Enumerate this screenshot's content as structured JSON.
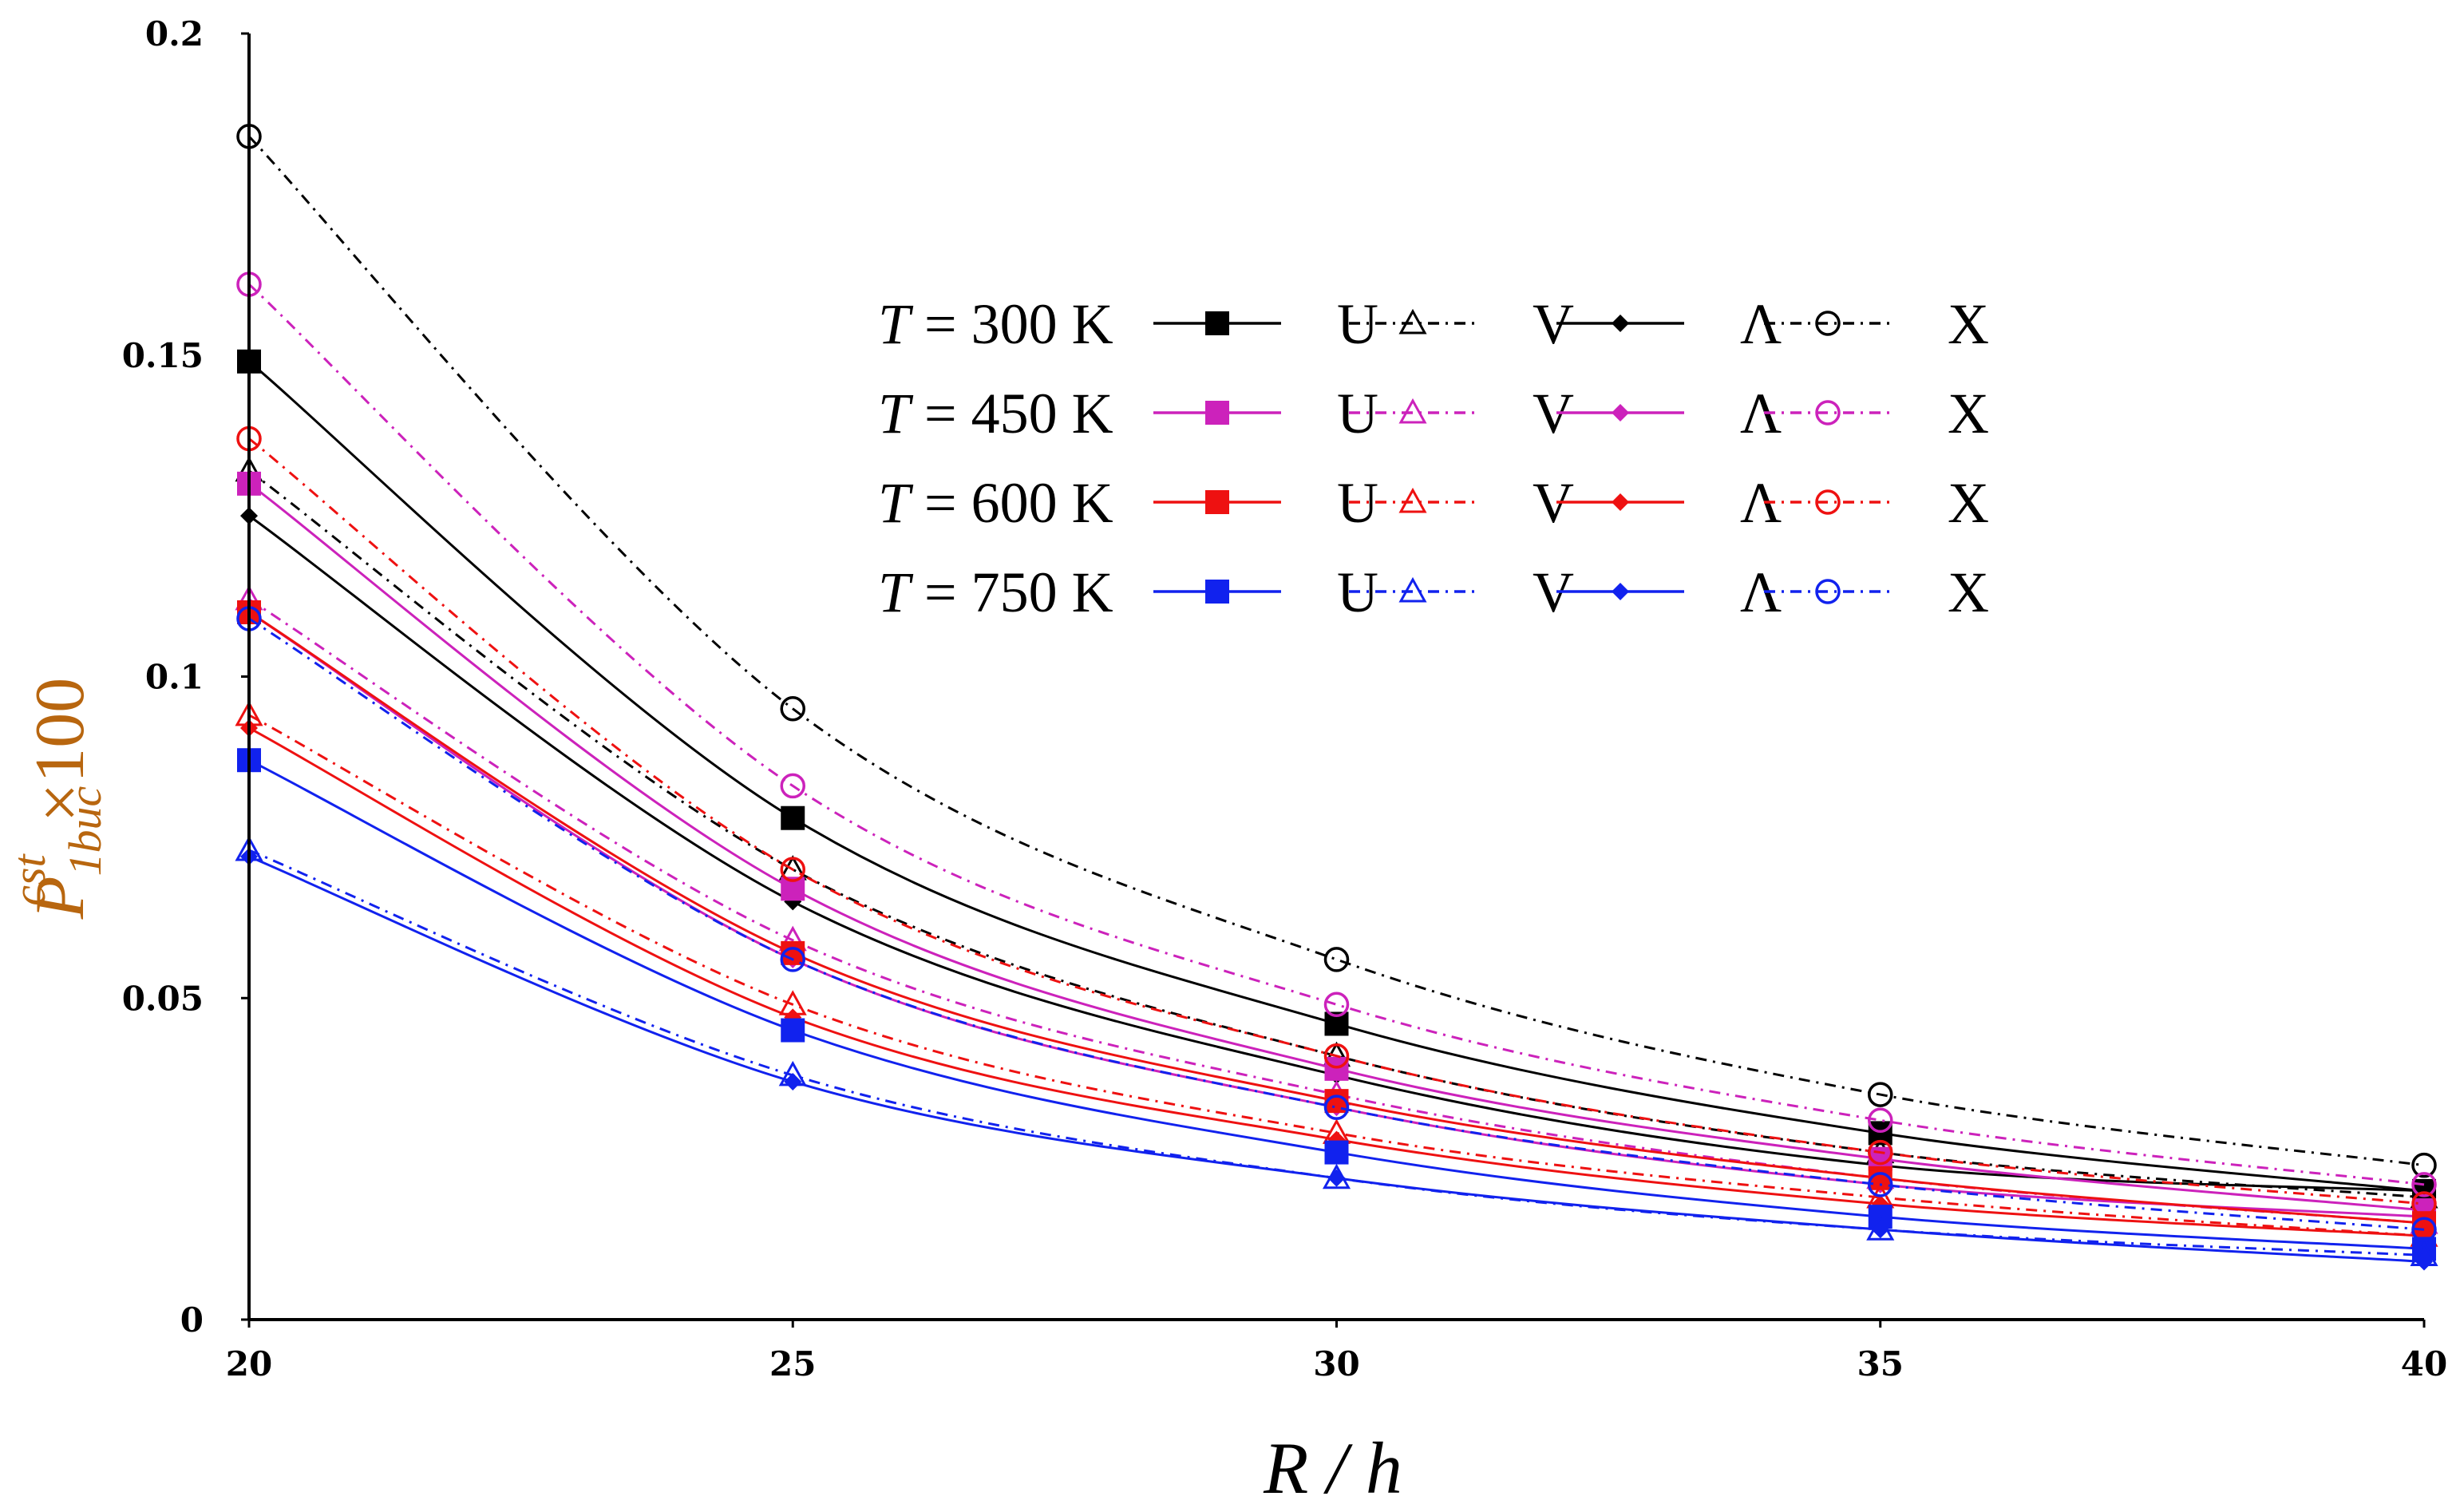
{
  "chart_data": {
    "type": "line",
    "title": "",
    "xlabel": "R / h",
    "ylabel": {
      "base": "P",
      "sup": "cst",
      "sub": "1buc",
      "suffix": "×100",
      "color": "#b8660f"
    },
    "x": [
      20,
      25,
      30,
      35,
      40
    ],
    "xlim": [
      20,
      40
    ],
    "ylim": [
      0,
      0.2
    ],
    "xticks": [
      "20",
      "25",
      "30",
      "35",
      "40"
    ],
    "yticks": [
      "0",
      "0.05",
      "0.1",
      "0.15",
      "0.2"
    ],
    "legend_position": "top-right",
    "legend_prefix": "T",
    "legend_unit": "K",
    "temperatures": [
      {
        "label": "300",
        "color": "#000000"
      },
      {
        "label": "450",
        "color": "#cc22bb"
      },
      {
        "label": "600",
        "color": "#ee1111"
      },
      {
        "label": "750",
        "color": "#1122ee"
      }
    ],
    "variants": [
      {
        "label": "U",
        "marker": "square",
        "dash": "solid"
      },
      {
        "label": "V",
        "marker": "triangle",
        "dash": "dashdot"
      },
      {
        "label": "Λ",
        "marker": "diamond",
        "dash": "solid"
      },
      {
        "label": "X",
        "marker": "circle",
        "dash": "dashdot"
      }
    ],
    "series": [
      {
        "name": "T = 300 K U",
        "temp": 0,
        "variant": 0,
        "values": [
          0.149,
          0.078,
          0.046,
          0.029,
          0.02
        ]
      },
      {
        "name": "T = 300 K V",
        "temp": 0,
        "variant": 1,
        "values": [
          0.132,
          0.07,
          0.041,
          0.026,
          0.019
        ]
      },
      {
        "name": "T = 300 K Λ",
        "temp": 0,
        "variant": 2,
        "values": [
          0.125,
          0.065,
          0.038,
          0.024,
          0.02
        ]
      },
      {
        "name": "T = 300 K X",
        "temp": 0,
        "variant": 3,
        "values": [
          0.184,
          0.095,
          0.056,
          0.035,
          0.024
        ]
      },
      {
        "name": "T = 450 K U",
        "temp": 1,
        "variant": 0,
        "values": [
          0.13,
          0.067,
          0.039,
          0.025,
          0.017
        ]
      },
      {
        "name": "T = 450 K V",
        "temp": 1,
        "variant": 1,
        "values": [
          0.112,
          0.059,
          0.035,
          0.022,
          0.015
        ]
      },
      {
        "name": "T = 450 K Λ",
        "temp": 1,
        "variant": 2,
        "values": [
          0.11,
          0.056,
          0.033,
          0.021,
          0.016
        ]
      },
      {
        "name": "T = 450 K X",
        "temp": 1,
        "variant": 3,
        "values": [
          0.161,
          0.083,
          0.049,
          0.031,
          0.021
        ]
      },
      {
        "name": "T = 600 K U",
        "temp": 2,
        "variant": 0,
        "values": [
          0.11,
          0.057,
          0.034,
          0.022,
          0.015
        ]
      },
      {
        "name": "T = 600 K V",
        "temp": 2,
        "variant": 1,
        "values": [
          0.094,
          0.049,
          0.029,
          0.019,
          0.013
        ]
      },
      {
        "name": "T = 600 K Λ",
        "temp": 2,
        "variant": 2,
        "values": [
          0.092,
          0.047,
          0.028,
          0.018,
          0.013
        ]
      },
      {
        "name": "T = 600 K X",
        "temp": 2,
        "variant": 3,
        "values": [
          0.137,
          0.07,
          0.041,
          0.026,
          0.018
        ]
      },
      {
        "name": "T = 750 K U",
        "temp": 3,
        "variant": 0,
        "values": [
          0.087,
          0.045,
          0.026,
          0.016,
          0.011
        ]
      },
      {
        "name": "T = 750 K V",
        "temp": 3,
        "variant": 1,
        "values": [
          0.073,
          0.038,
          0.022,
          0.014,
          0.01
        ]
      },
      {
        "name": "T = 750 K Λ",
        "temp": 3,
        "variant": 2,
        "values": [
          0.072,
          0.037,
          0.022,
          0.014,
          0.009
        ]
      },
      {
        "name": "T = 750 K X",
        "temp": 3,
        "variant": 3,
        "values": [
          0.109,
          0.056,
          0.033,
          0.021,
          0.014
        ]
      }
    ]
  }
}
